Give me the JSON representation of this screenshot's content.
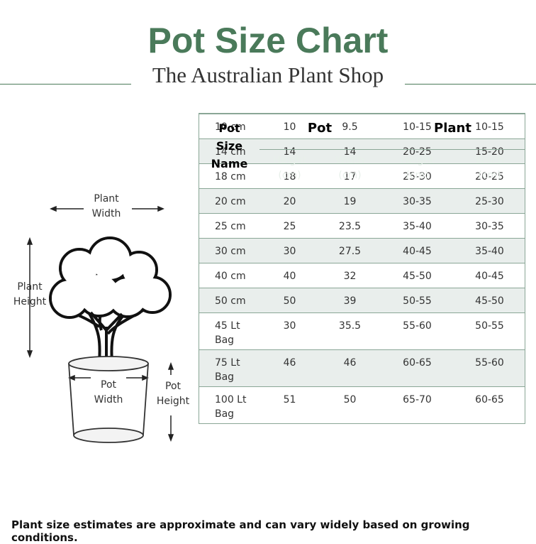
{
  "header": {
    "title": "Pot Size Chart",
    "subtitle": "The Australian Plant Shop"
  },
  "diagram": {
    "plant_width": "Plant Width",
    "plant_height": "Plant Height",
    "pot_width": "Pot Width",
    "pot_height": "Pot Height"
  },
  "table": {
    "first_header": "Pot Size Name",
    "groups": [
      "Pot",
      "Plant"
    ],
    "subheaders": [
      "Height (cm)",
      "Width (cm)",
      "Height (cm)",
      "Width (cm)"
    ],
    "rows": [
      [
        "10 cm",
        "10",
        "9.5",
        "10-15",
        "10-15"
      ],
      [
        "14 cm",
        "14",
        "14",
        "20-25",
        "15-20"
      ],
      [
        "18 cm",
        "18",
        "17",
        "25-30",
        "20-25"
      ],
      [
        "20 cm",
        "20",
        "19",
        "30-35",
        "25-30"
      ],
      [
        "25 cm",
        "25",
        "23.5",
        "35-40",
        "30-35"
      ],
      [
        "30 cm",
        "30",
        "27.5",
        "40-45",
        "35-40"
      ],
      [
        "40 cm",
        "40",
        "32",
        "45-50",
        "40-45"
      ],
      [
        "50 cm",
        "50",
        "39",
        "50-55",
        "45-50"
      ],
      [
        "45 Lt Bag",
        "30",
        "35.5",
        "55-60",
        "50-55"
      ],
      [
        "75 Lt Bag",
        "46",
        "46",
        "60-65",
        "55-60"
      ],
      [
        "100 Lt Bag",
        "51",
        "50",
        "65-70",
        "60-65"
      ]
    ]
  },
  "footer": "Plant size estimates are approximate and can vary widely based on growing conditions."
}
